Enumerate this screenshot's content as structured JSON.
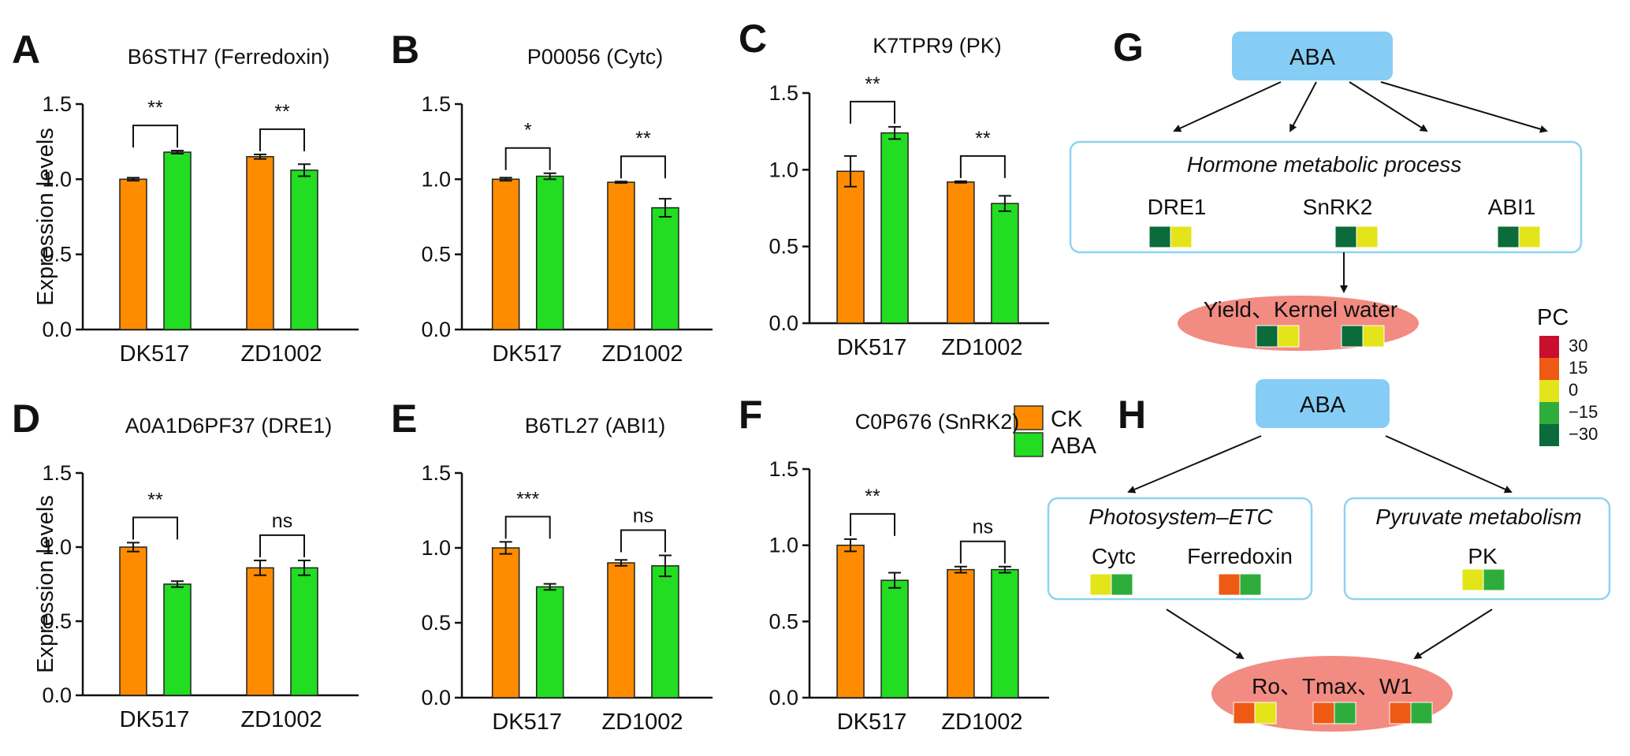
{
  "chart_data": [
    {
      "type": "bar",
      "letter": "A",
      "title": "B6STH7 (Ferredoxin)",
      "ylabel": "Expression levels",
      "categories": [
        "DK517",
        "ZD1002"
      ],
      "ylim": [
        0,
        1.5
      ],
      "yticks": [
        "0.0",
        "0.5",
        "1.0",
        "1.5"
      ],
      "series": [
        {
          "name": "CK",
          "values": [
            1.0,
            1.15
          ],
          "errors": [
            0.01,
            0.015
          ]
        },
        {
          "name": "ABA",
          "values": [
            1.18,
            1.06
          ],
          "errors": [
            0.01,
            0.04
          ]
        }
      ],
      "significance": [
        "**",
        "**"
      ]
    },
    {
      "type": "bar",
      "letter": "B",
      "title": "P00056 (Cytc)",
      "ylabel": "",
      "categories": [
        "DK517",
        "ZD1002"
      ],
      "ylim": [
        0,
        1.5
      ],
      "yticks": [
        "0.0",
        "0.5",
        "1.0",
        "1.5"
      ],
      "series": [
        {
          "name": "CK",
          "values": [
            1.0,
            0.98
          ],
          "errors": [
            0.01,
            0.005
          ]
        },
        {
          "name": "ABA",
          "values": [
            1.02,
            0.81
          ],
          "errors": [
            0.02,
            0.06
          ]
        }
      ],
      "significance": [
        "*",
        "**"
      ]
    },
    {
      "type": "bar",
      "letter": "C",
      "title": "K7TPR9 (PK)",
      "ylabel": "",
      "categories": [
        "DK517",
        "ZD1002"
      ],
      "ylim": [
        0,
        1.5
      ],
      "yticks": [
        "0.0",
        "0.5",
        "1.0",
        "1.5"
      ],
      "series": [
        {
          "name": "CK",
          "values": [
            0.99,
            0.92
          ],
          "errors": [
            0.1,
            0.005
          ]
        },
        {
          "name": "ABA",
          "values": [
            1.24,
            0.78
          ],
          "errors": [
            0.04,
            0.05
          ]
        }
      ],
      "significance": [
        "**",
        "**"
      ]
    },
    {
      "type": "bar",
      "letter": "D",
      "title": "A0A1D6PF37 (DRE1)",
      "ylabel": "Expression levels",
      "categories": [
        "DK517",
        "ZD1002"
      ],
      "ylim": [
        0,
        1.5
      ],
      "yticks": [
        "0.0",
        "0.5",
        "1.0",
        "1.5"
      ],
      "series": [
        {
          "name": "CK",
          "values": [
            1.0,
            0.86
          ],
          "errors": [
            0.03,
            0.05
          ]
        },
        {
          "name": "ABA",
          "values": [
            0.75,
            0.86
          ],
          "errors": [
            0.02,
            0.05
          ]
        }
      ],
      "significance": [
        "**",
        "ns"
      ]
    },
    {
      "type": "bar",
      "letter": "E",
      "title": "B6TL27 (ABI1)",
      "ylabel": "",
      "categories": [
        "DK517",
        "ZD1002"
      ],
      "ylim": [
        0,
        1.5
      ],
      "yticks": [
        "0.0",
        "0.5",
        "1.0",
        "1.5"
      ],
      "series": [
        {
          "name": "CK",
          "values": [
            1.0,
            0.9
          ],
          "errors": [
            0.04,
            0.02
          ]
        },
        {
          "name": "ABA",
          "values": [
            0.74,
            0.88
          ],
          "errors": [
            0.02,
            0.07
          ]
        }
      ],
      "significance": [
        "***",
        "ns"
      ]
    },
    {
      "type": "bar",
      "letter": "F",
      "title": "C0P676 (SnRK2)",
      "ylabel": "",
      "categories": [
        "DK517",
        "ZD1002"
      ],
      "ylim": [
        0,
        1.5
      ],
      "yticks": [
        "0.0",
        "0.5",
        "1.0",
        "1.5"
      ],
      "series": [
        {
          "name": "CK",
          "values": [
            1.0,
            0.84
          ],
          "errors": [
            0.04,
            0.02
          ]
        },
        {
          "name": "ABA",
          "values": [
            0.77,
            0.84
          ],
          "errors": [
            0.05,
            0.02
          ]
        }
      ],
      "significance": [
        "**",
        "ns"
      ]
    }
  ],
  "legend": {
    "items": [
      {
        "label": "CK",
        "color": "#FF8C00"
      },
      {
        "label": "ABA",
        "color": "#22DD22"
      }
    ]
  },
  "colors": {
    "ck": "#FF8C00",
    "aba": "#22DD22",
    "box_border": "#8ED3F2",
    "aba_box": "#86CDF5",
    "ellipse": "#F28B82"
  },
  "panel_g": {
    "letter": "G",
    "top_label": "ABA",
    "process": "Hormone metabolic process",
    "genes": [
      {
        "name": "DRE1",
        "pc": [
          -30,
          0
        ]
      },
      {
        "name": "SnRK2",
        "pc": [
          -30,
          0
        ]
      },
      {
        "name": "ABI1",
        "pc": [
          -30,
          0
        ]
      }
    ],
    "outcome": "Yield、Kernel water",
    "outcome_pc": [
      [
        -30,
        0
      ],
      [
        -30,
        0
      ]
    ]
  },
  "panel_h": {
    "letter": "H",
    "top_label": "ABA",
    "left_process": "Photosystem–ETC",
    "left_genes": [
      {
        "name": "Cytc",
        "pc": [
          0,
          -15
        ]
      },
      {
        "name": "Ferredoxin",
        "pc": [
          15,
          -15
        ]
      }
    ],
    "right_process": "Pyruvate metabolism",
    "right_genes": [
      {
        "name": "PK",
        "pc": [
          0,
          -15
        ]
      }
    ],
    "outcome": "Ro、Tmax、W1",
    "outcome_pc": [
      [
        15,
        0
      ],
      [
        15,
        -15
      ],
      [
        15,
        -15
      ]
    ]
  },
  "pc_scale": {
    "title": "PC",
    "ticks": [
      "30",
      "15",
      "0",
      "−15",
      "−30"
    ],
    "colors": [
      "#C8102E",
      "#EE5A14",
      "#E4E41A",
      "#2EAD3C",
      "#0B6B3A"
    ]
  }
}
